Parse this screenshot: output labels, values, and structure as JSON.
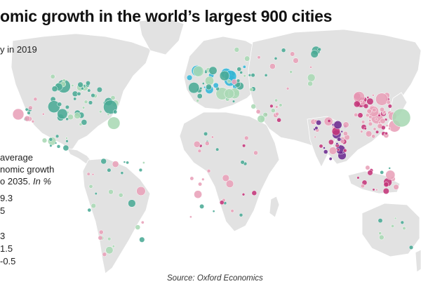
{
  "title": "omic growth in the world’s largest 900 cities",
  "subtitle": "y in 2019",
  "legend": {
    "title_lines": [
      "average",
      "nomic growth",
      "o 2035. "
    ],
    "title_unit": "In %",
    "items": [
      {
        "label": "9.3",
        "color": ""
      },
      {
        "label": "5",
        "color": ""
      },
      {
        "label": "",
        "color": ""
      },
      {
        "label": "3",
        "color": ""
      },
      {
        "label": "1.5",
        "color": ""
      },
      {
        "label": "-0.5",
        "color": ""
      }
    ]
  },
  "source": "Source: Oxford Economics",
  "colors": {
    "land": "#e2e2e2",
    "ocean": "#ffffff",
    "very_high": "#6b2a8f",
    "high": "#c4357a",
    "mid_high": "#e8a0b8",
    "mid_low": "#a8d8b4",
    "low": "#4aaa95",
    "lowest": "#33b6d8"
  }
}
